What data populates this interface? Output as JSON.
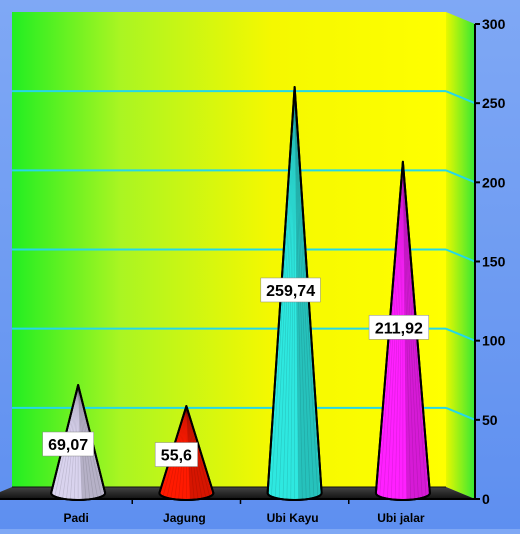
{
  "chart_data": {
    "type": "bar",
    "categories": [
      "Padi",
      "Jagung",
      "Ubi Kayu",
      "Ubi jalar"
    ],
    "values": [
      69.07,
      55.6,
      259.74,
      211.92
    ],
    "data_labels": [
      "69,07",
      "55,6",
      "259,74",
      "211,92"
    ],
    "colors": [
      "#d9d3ee",
      "#ff1a00",
      "#2ee8e0",
      "#ff20ff"
    ],
    "title": "",
    "xlabel": "",
    "ylabel": "",
    "ylim": [
      0,
      300
    ],
    "yticks": [
      {
        "value": 0,
        "label": "0"
      },
      {
        "value": 50,
        "label": "50"
      },
      {
        "value": 100,
        "label": "100"
      },
      {
        "value": 150,
        "label": "150"
      },
      {
        "value": 200,
        "label": "200"
      },
      {
        "value": 250,
        "label": "250"
      },
      {
        "value": 300,
        "label": "300"
      }
    ],
    "grid": true,
    "legend": "none",
    "mark_shape": "cone"
  }
}
